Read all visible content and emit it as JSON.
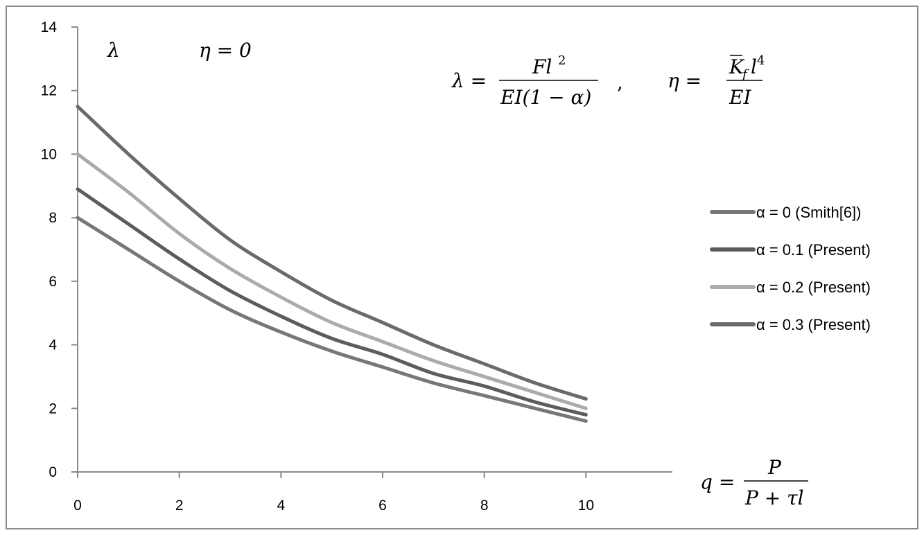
{
  "chart_data": {
    "type": "line",
    "x": [
      0,
      1,
      2,
      3,
      4,
      5,
      6,
      7,
      8,
      9,
      10
    ],
    "xlim": [
      0,
      11.7
    ],
    "ylim": [
      0,
      14
    ],
    "x_ticks": [
      "0",
      "2",
      "4",
      "6",
      "8",
      "10"
    ],
    "y_ticks": [
      "0",
      "2",
      "4",
      "6",
      "8",
      "10",
      "12",
      "14"
    ],
    "grid": false,
    "legend_position": "right",
    "series": [
      {
        "name": "α = 0 (Smith[6])",
        "color": "#777777",
        "values": [
          8.0,
          7.0,
          6.0,
          5.1,
          4.4,
          3.8,
          3.3,
          2.8,
          2.4,
          2.0,
          1.6
        ]
      },
      {
        "name": "α = 0.1 (Present)",
        "color": "#5c5c5c",
        "values": [
          8.9,
          7.8,
          6.7,
          5.7,
          4.9,
          4.2,
          3.7,
          3.1,
          2.7,
          2.2,
          1.8
        ]
      },
      {
        "name": "α = 0.2 (Present)",
        "color": "#ababab",
        "values": [
          10.0,
          8.8,
          7.5,
          6.4,
          5.5,
          4.7,
          4.1,
          3.5,
          3.0,
          2.5,
          2.0
        ]
      },
      {
        "name": "α = 0.3 (Present)",
        "color": "#6a6a6a",
        "values": [
          11.5,
          10.0,
          8.6,
          7.3,
          6.3,
          5.4,
          4.7,
          4.0,
          3.4,
          2.8,
          2.3
        ]
      }
    ],
    "annotations": {
      "corner_label": "λ",
      "eta_condition": "η = 0",
      "lambda_def_lhs": "λ =",
      "lambda_num": "Fl",
      "lambda_num_exp": "2",
      "lambda_den": "EI(1 − α)",
      "separator": ",",
      "eta_def_lhs": "η =",
      "eta_num": "K",
      "eta_num_sub": "f",
      "eta_num_l": "l",
      "eta_num_exp": "4",
      "eta_den": "EI",
      "q_lhs": "q =",
      "q_num": "P",
      "q_den": "P + τl"
    }
  }
}
